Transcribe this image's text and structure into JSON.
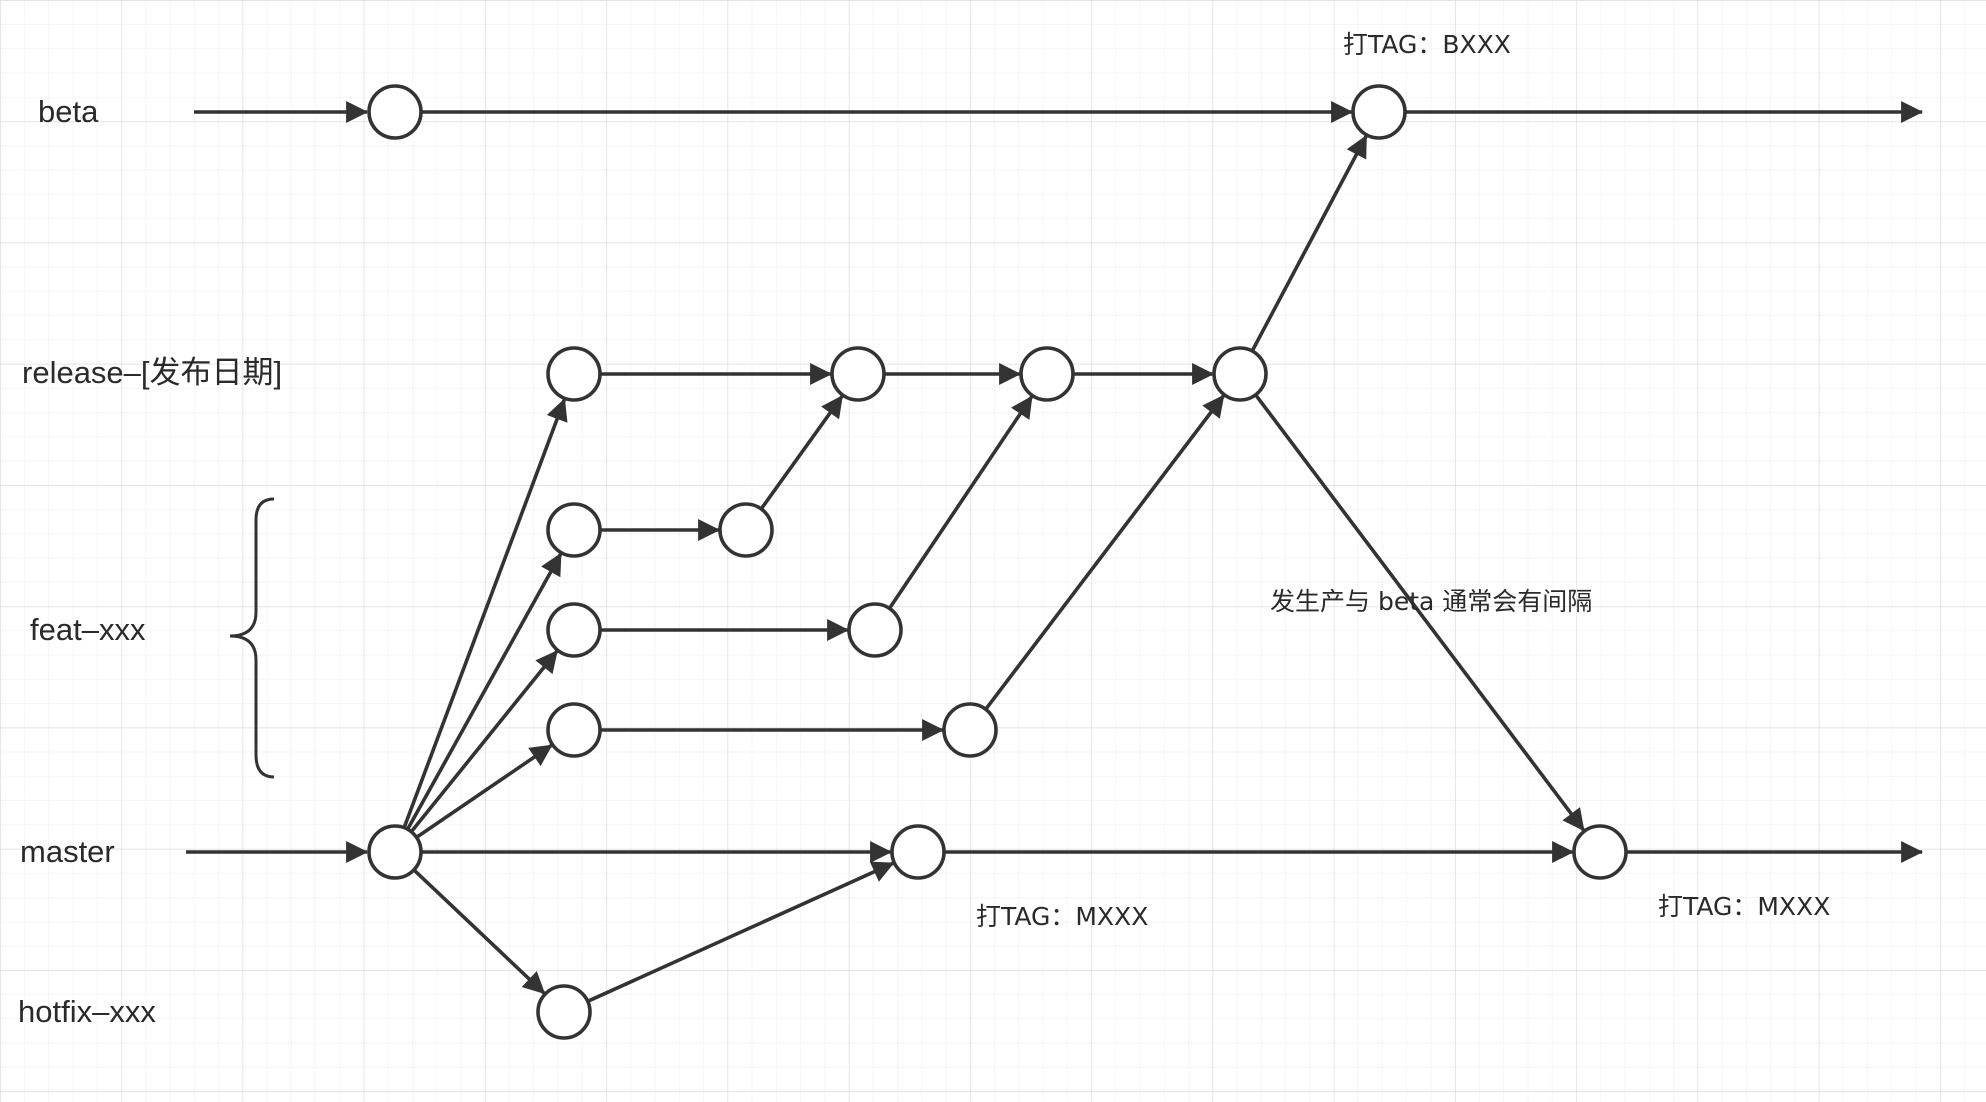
{
  "diagram": {
    "branches": {
      "beta": "beta",
      "release": "release–[发布日期]",
      "feat": "feat–xxx",
      "master": "master",
      "hotfix": "hotfix–xxx"
    },
    "annotations": {
      "beta_tag": "打TAG：BXXX",
      "master_tag_hotfix": "打TAG：MXXX",
      "master_tag_release": "打TAG：MXXX",
      "gap_note": "发生产与 beta 通常会有间隔"
    },
    "commits": [
      {
        "id": "beta-1",
        "branch": "beta"
      },
      {
        "id": "beta-2",
        "branch": "beta"
      },
      {
        "id": "release-1",
        "branch": "release"
      },
      {
        "id": "release-2",
        "branch": "release"
      },
      {
        "id": "release-3",
        "branch": "release"
      },
      {
        "id": "release-4",
        "branch": "release"
      },
      {
        "id": "feat-a-1",
        "branch": "feat"
      },
      {
        "id": "feat-a-2",
        "branch": "feat"
      },
      {
        "id": "feat-b-1",
        "branch": "feat"
      },
      {
        "id": "feat-b-2",
        "branch": "feat"
      },
      {
        "id": "feat-c-1",
        "branch": "feat"
      },
      {
        "id": "feat-c-2",
        "branch": "feat"
      },
      {
        "id": "master-1",
        "branch": "master"
      },
      {
        "id": "master-2",
        "branch": "master"
      },
      {
        "id": "master-3",
        "branch": "master"
      },
      {
        "id": "hotfix-1",
        "branch": "hotfix"
      }
    ],
    "edges": [
      [
        "beta-1",
        "beta-2"
      ],
      [
        "master-1",
        "release-1"
      ],
      [
        "master-1",
        "feat-a-1"
      ],
      [
        "master-1",
        "feat-b-1"
      ],
      [
        "master-1",
        "feat-c-1"
      ],
      [
        "master-1",
        "master-2"
      ],
      [
        "master-1",
        "hotfix-1"
      ],
      [
        "hotfix-1",
        "master-2"
      ],
      [
        "master-2",
        "master-3"
      ],
      [
        "release-1",
        "release-2"
      ],
      [
        "release-2",
        "release-3"
      ],
      [
        "release-3",
        "release-4"
      ],
      [
        "feat-a-1",
        "feat-a-2"
      ],
      [
        "feat-a-2",
        "release-2"
      ],
      [
        "feat-b-1",
        "feat-b-2"
      ],
      [
        "feat-b-2",
        "release-3"
      ],
      [
        "feat-c-1",
        "feat-c-2"
      ],
      [
        "feat-c-2",
        "release-4"
      ],
      [
        "release-4",
        "beta-2"
      ],
      [
        "release-4",
        "master-3"
      ]
    ]
  },
  "colors": {
    "line": "#333333",
    "grid_minor": "#ececec",
    "grid_major": "#dcdcdc",
    "background": "#ffffff"
  }
}
